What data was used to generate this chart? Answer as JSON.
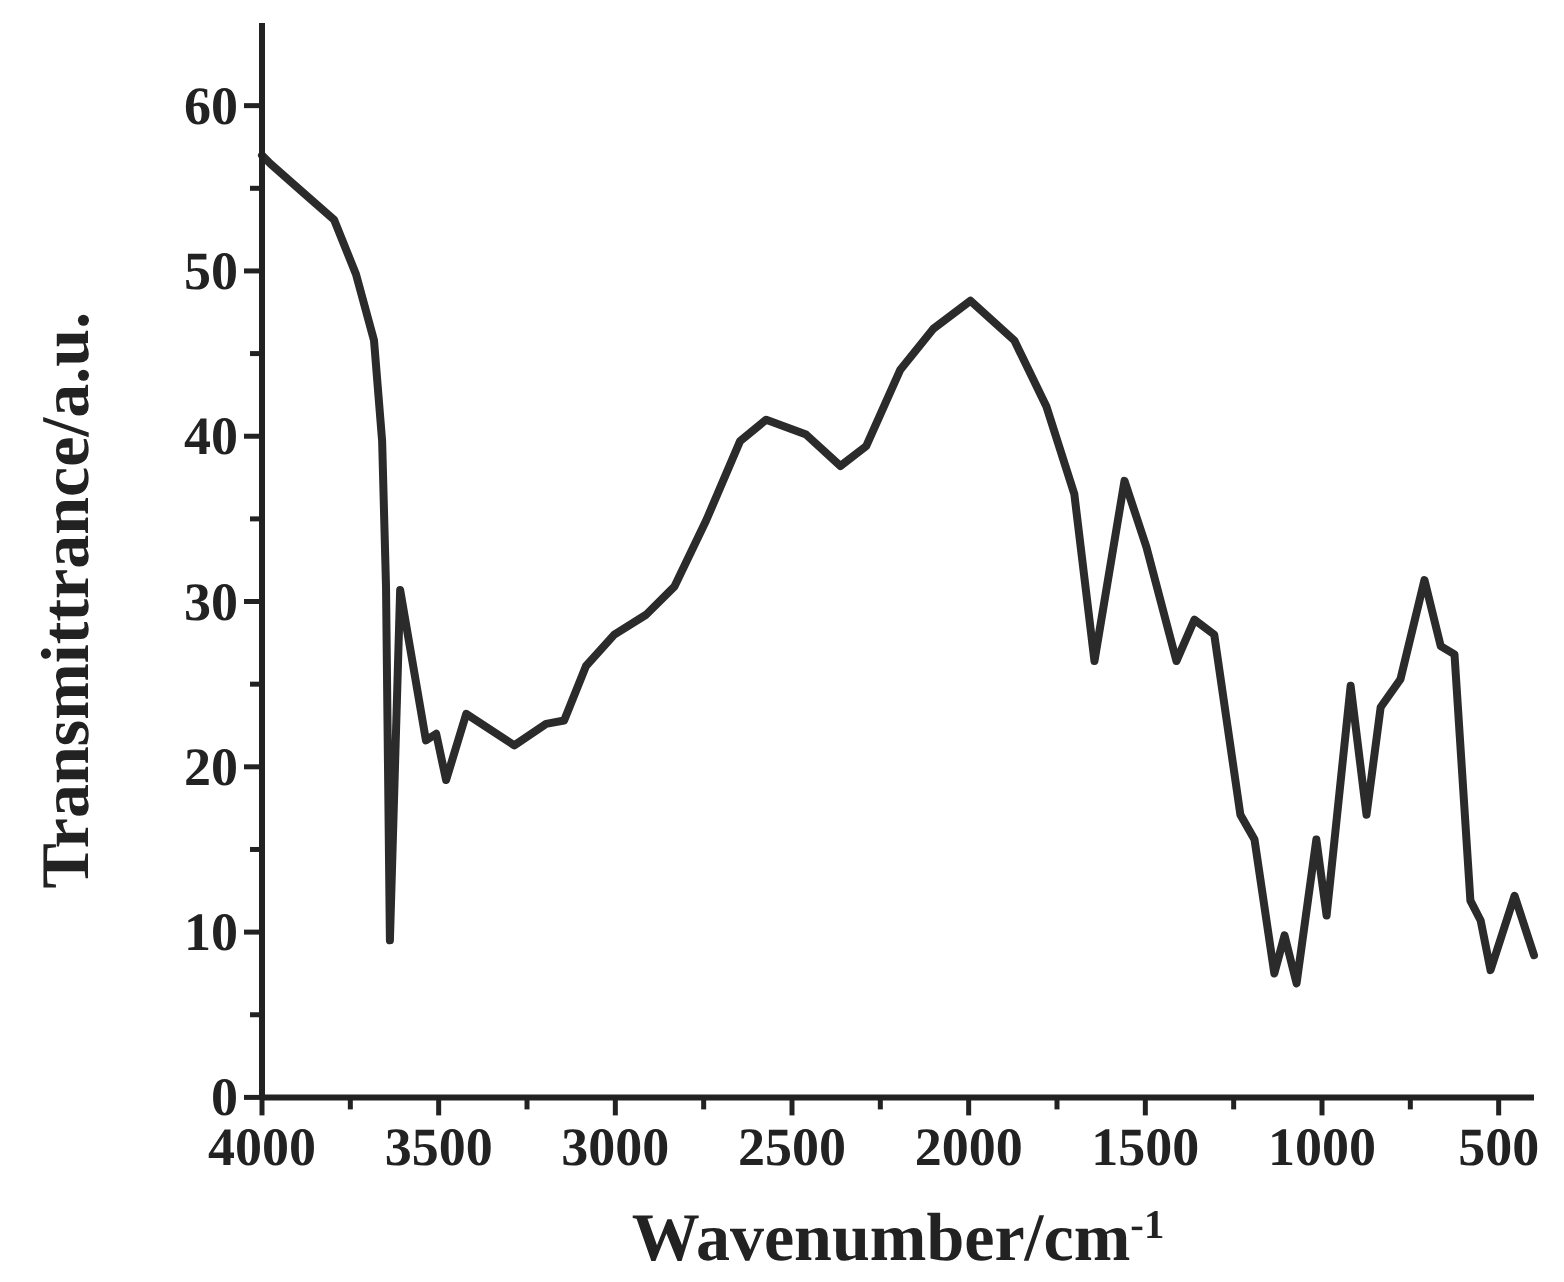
{
  "chart_data": {
    "type": "line",
    "xlabel": "Wavenumber/cm$^{-1}$",
    "ylabel": "Transmittrance/a.u.",
    "xlim": [
      4000,
      400
    ],
    "ylim": [
      0,
      65
    ],
    "xticks": [
      4000,
      {
        "value": 3750,
        "label": null
      },
      3500,
      {
        "value": 3250,
        "label": null
      },
      3000,
      {
        "value": 2750,
        "label": null
      },
      2500,
      {
        "value": 2250,
        "label": null
      },
      2000,
      {
        "value": 1750,
        "label": null
      },
      1500,
      {
        "value": 1250,
        "label": null
      },
      1000,
      {
        "value": 750,
        "label": null
      },
      500
    ],
    "yticks": [
      0,
      {
        "value": 5,
        "label": null
      },
      10,
      {
        "value": 15,
        "label": null
      },
      20,
      {
        "value": 25,
        "label": null
      },
      30,
      {
        "value": 35,
        "label": null
      },
      40,
      {
        "value": 45,
        "label": null
      },
      50,
      {
        "value": 55,
        "label": null
      },
      60
    ],
    "grid": false,
    "marker": "none",
    "line_style": "solid",
    "series": [
      {
        "color": "#2b2b2b",
        "x": [
          4000,
          3977,
          3892,
          3796,
          3734,
          3683,
          3660,
          3649,
          3638,
          3609,
          3536,
          3507,
          3479,
          3422,
          3286,
          3196,
          3145,
          3083,
          3003,
          2913,
          2833,
          2743,
          2647,
          2573,
          2460,
          2363,
          2290,
          2194,
          2100,
          1995,
          1871,
          1780,
          1701,
          1644,
          1559,
          1497,
          1412,
          1361,
          1305,
          1231,
          1191,
          1135,
          1106,
          1072,
          1016,
          987,
          919,
          874,
          834,
          778,
          710,
          664,
          625,
          580,
          551,
          523,
          455,
          400
        ],
        "values": [
          57,
          56.5,
          54.9,
          53.1,
          49.8,
          45.8,
          39.7,
          30.9,
          9.5,
          30.7,
          21.6,
          22,
          19.2,
          23.2,
          21.3,
          22.6,
          22.8,
          26.1,
          28,
          29.2,
          30.9,
          34.9,
          39.7,
          41,
          40.1,
          38.2,
          39.4,
          44,
          46.5,
          48.2,
          45.8,
          41.8,
          36.5,
          26.4,
          37.3,
          33.3,
          26.4,
          28.9,
          28,
          17.1,
          15.6,
          7.5,
          9.8,
          6.9,
          15.6,
          11,
          24.9,
          17.1,
          23.6,
          25.3,
          31.3,
          27.3,
          26.8,
          11.9,
          10.7,
          7.7,
          12.2,
          8.6
        ]
      }
    ]
  }
}
